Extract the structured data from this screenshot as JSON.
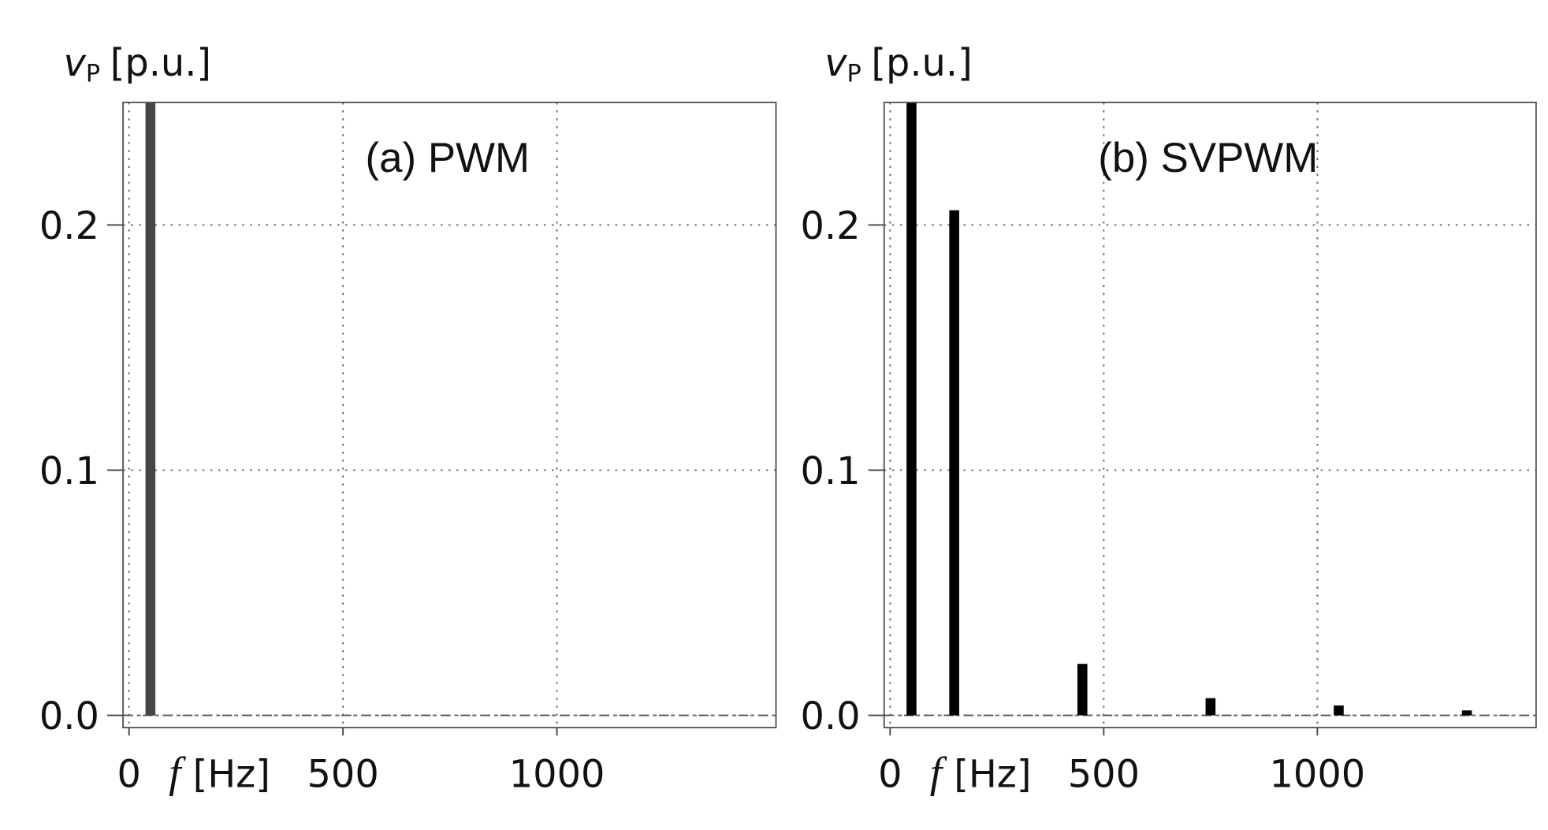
{
  "chart_data": [
    {
      "type": "bar",
      "title": "(a) PWM",
      "y_label": {
        "symbol": "v",
        "subscript": "P",
        "unit": "[p.u.]"
      },
      "x_label": {
        "symbol": "f",
        "unit": "[Hz]"
      },
      "x": [
        50
      ],
      "values": [
        0.25
      ],
      "color": "#444444",
      "xlim": [
        -14,
        1512
      ],
      "xticks": [
        0,
        500,
        1000
      ],
      "ylim": [
        -0.005,
        0.25
      ],
      "yticks": [
        {
          "value": 0,
          "label": "0.0"
        },
        0.1,
        0.2
      ],
      "grid": true
    },
    {
      "type": "bar",
      "title": "(b) SVPWM",
      "y_label": {
        "symbol": "v",
        "subscript": "P",
        "unit": "[p.u.]"
      },
      "x_label": {
        "symbol": "f",
        "unit": "[Hz]"
      },
      "x": [
        50,
        150,
        450,
        750,
        1050,
        1350
      ],
      "values": [
        0.25,
        0.206,
        0.021,
        0.007,
        0.004,
        0.002
      ],
      "color": "#000000",
      "xlim": [
        -14,
        1512
      ],
      "xticks": [
        0,
        500,
        1000
      ],
      "ylim": [
        -0.005,
        0.25
      ],
      "yticks": [
        {
          "value": 0,
          "label": "0.0"
        },
        0.1,
        0.2
      ],
      "grid": true
    }
  ]
}
